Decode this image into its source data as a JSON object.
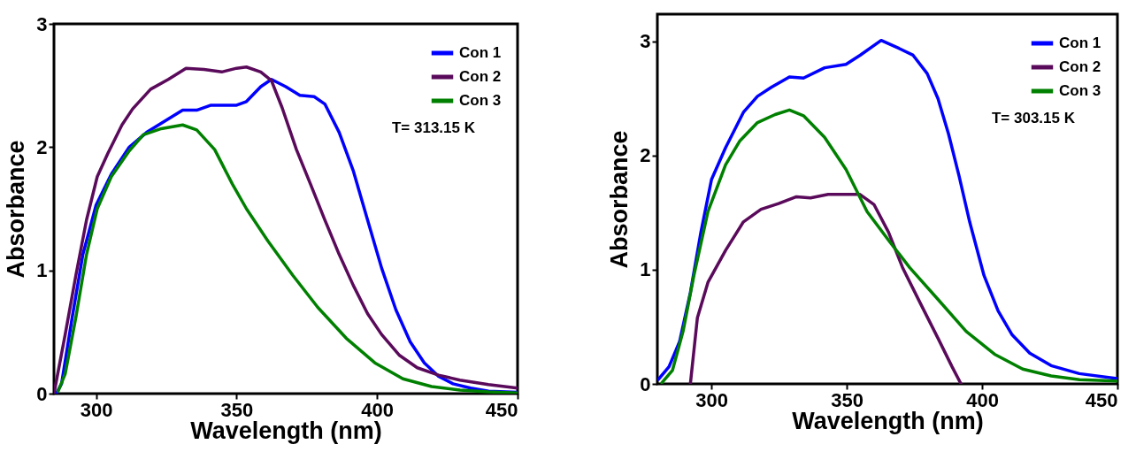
{
  "chart_data": [
    {
      "type": "line",
      "xlabel": "Wavelength (nm)",
      "ylabel": "Absorbance",
      "xlim": [
        285,
        450
      ],
      "ylim": [
        0,
        3
      ],
      "xticks": [
        300,
        350,
        400,
        450
      ],
      "yticks": [
        0,
        1,
        2,
        3
      ],
      "legend": "top right",
      "annotations": [
        "T= 313.15 K"
      ],
      "series": [
        {
          "name": "Con 1",
          "color": "#0000ff",
          "x": [
            285.8,
            287.7,
            291.5,
            295.3,
            300,
            305.4,
            311.8,
            318,
            330.8,
            335.8,
            340.9,
            350,
            353.5,
            358.6,
            362.4,
            367.5,
            372.5,
            377.6,
            381.4,
            386.5,
            391.5,
            396.6,
            401.6,
            406.7,
            411.8,
            416.8,
            421.9,
            427,
            433.3,
            439.7,
            450
          ],
          "values": [
            0,
            0.08,
            0.62,
            1.13,
            1.53,
            1.78,
            2.0,
            2.12,
            2.3,
            2.3,
            2.34,
            2.34,
            2.37,
            2.49,
            2.55,
            2.49,
            2.42,
            2.41,
            2.35,
            2.12,
            1.81,
            1.41,
            1.02,
            0.68,
            0.42,
            0.25,
            0.14,
            0.08,
            0.045,
            0.02,
            0.01
          ]
        },
        {
          "name": "Con 2",
          "color": "#5a0a5a",
          "x": [
            285,
            289,
            292.8,
            296.6,
            300.4,
            304.2,
            309.2,
            313,
            319.4,
            325.7,
            332,
            338.4,
            344.7,
            350,
            353.5,
            358.6,
            362.4,
            366.2,
            371.3,
            376.3,
            381.4,
            386.5,
            391.5,
            396.6,
            401.6,
            408,
            414.3,
            421.9,
            429.5,
            439.6,
            450
          ],
          "values": [
            0,
            0.48,
            0.96,
            1.41,
            1.76,
            1.95,
            2.18,
            2.31,
            2.47,
            2.55,
            2.64,
            2.63,
            2.61,
            2.64,
            2.65,
            2.61,
            2.54,
            2.32,
            1.98,
            1.7,
            1.41,
            1.13,
            0.88,
            0.65,
            0.48,
            0.31,
            0.21,
            0.15,
            0.11,
            0.074,
            0.045
          ]
        },
        {
          "name": "Con 3",
          "color": "#008000",
          "x": [
            286.5,
            289,
            292.8,
            296.6,
            300.4,
            305.4,
            311.8,
            316.8,
            323.2,
            330.8,
            335.8,
            342.2,
            348.5,
            353.5,
            361.1,
            370,
            378.9,
            389,
            399.2,
            409.2,
            419.4,
            429.5,
            439.6,
            450
          ],
          "values": [
            0.02,
            0.16,
            0.62,
            1.13,
            1.5,
            1.76,
            1.97,
            2.1,
            2.15,
            2.18,
            2.14,
            1.98,
            1.7,
            1.5,
            1.24,
            0.96,
            0.7,
            0.45,
            0.25,
            0.12,
            0.057,
            0.028,
            0.014,
            0.006
          ]
        }
      ]
    },
    {
      "type": "line",
      "xlabel": "Wavelength (nm)",
      "ylabel": "Absorbance",
      "xlim": [
        280,
        450
      ],
      "ylim": [
        0,
        3.24
      ],
      "xticks": [
        300,
        350,
        400,
        450
      ],
      "yticks": [
        0,
        1,
        2,
        3
      ],
      "legend": "top right",
      "annotations": [
        "T= 303.15 K"
      ],
      "series": [
        {
          "name": "Con 1",
          "color": "#0000ff",
          "x": [
            280.4,
            284.3,
            288.2,
            292.2,
            296.1,
            300,
            305.2,
            311.8,
            317,
            322.2,
            328.8,
            334,
            341.8,
            349.7,
            354.9,
            362.7,
            369.3,
            374.5,
            379.7,
            383.7,
            387.6,
            391.5,
            395.4,
            400.7,
            405.9,
            411.1,
            417.6,
            425.5,
            435.9,
            450
          ],
          "values": [
            0.04,
            0.15,
            0.37,
            0.8,
            1.33,
            1.79,
            2.07,
            2.38,
            2.52,
            2.6,
            2.69,
            2.68,
            2.77,
            2.8,
            2.88,
            3.01,
            2.94,
            2.88,
            2.72,
            2.5,
            2.19,
            1.82,
            1.42,
            0.95,
            0.64,
            0.43,
            0.27,
            0.16,
            0.09,
            0.046
          ]
        },
        {
          "name": "Con 2",
          "color": "#5a0a5a",
          "x": [
            292.2,
            294.8,
            298.7,
            305.2,
            311.8,
            318.3,
            324.8,
            331.4,
            336.6,
            343.1,
            354.9,
            360.1,
            365.4,
            370.6,
            377.1,
            383.7,
            388.9,
            392.2
          ],
          "values": [
            0,
            0.58,
            0.89,
            1.17,
            1.42,
            1.53,
            1.58,
            1.64,
            1.63,
            1.66,
            1.66,
            1.57,
            1.33,
            1.02,
            0.71,
            0.4,
            0.15,
            0
          ]
        },
        {
          "name": "Con 3",
          "color": "#008000",
          "x": [
            281.7,
            285.6,
            289.5,
            293.5,
            298.7,
            305.2,
            310.5,
            317,
            323.5,
            328.8,
            334,
            341.8,
            349.7,
            357.5,
            365.4,
            373.2,
            383.7,
            394.1,
            404.6,
            415,
            425.5,
            436,
            450
          ],
          "values": [
            0.01,
            0.12,
            0.46,
            0.95,
            1.51,
            1.92,
            2.13,
            2.29,
            2.36,
            2.4,
            2.35,
            2.16,
            1.88,
            1.51,
            1.26,
            1.02,
            0.74,
            0.46,
            0.26,
            0.13,
            0.07,
            0.037,
            0.025
          ]
        }
      ]
    }
  ]
}
